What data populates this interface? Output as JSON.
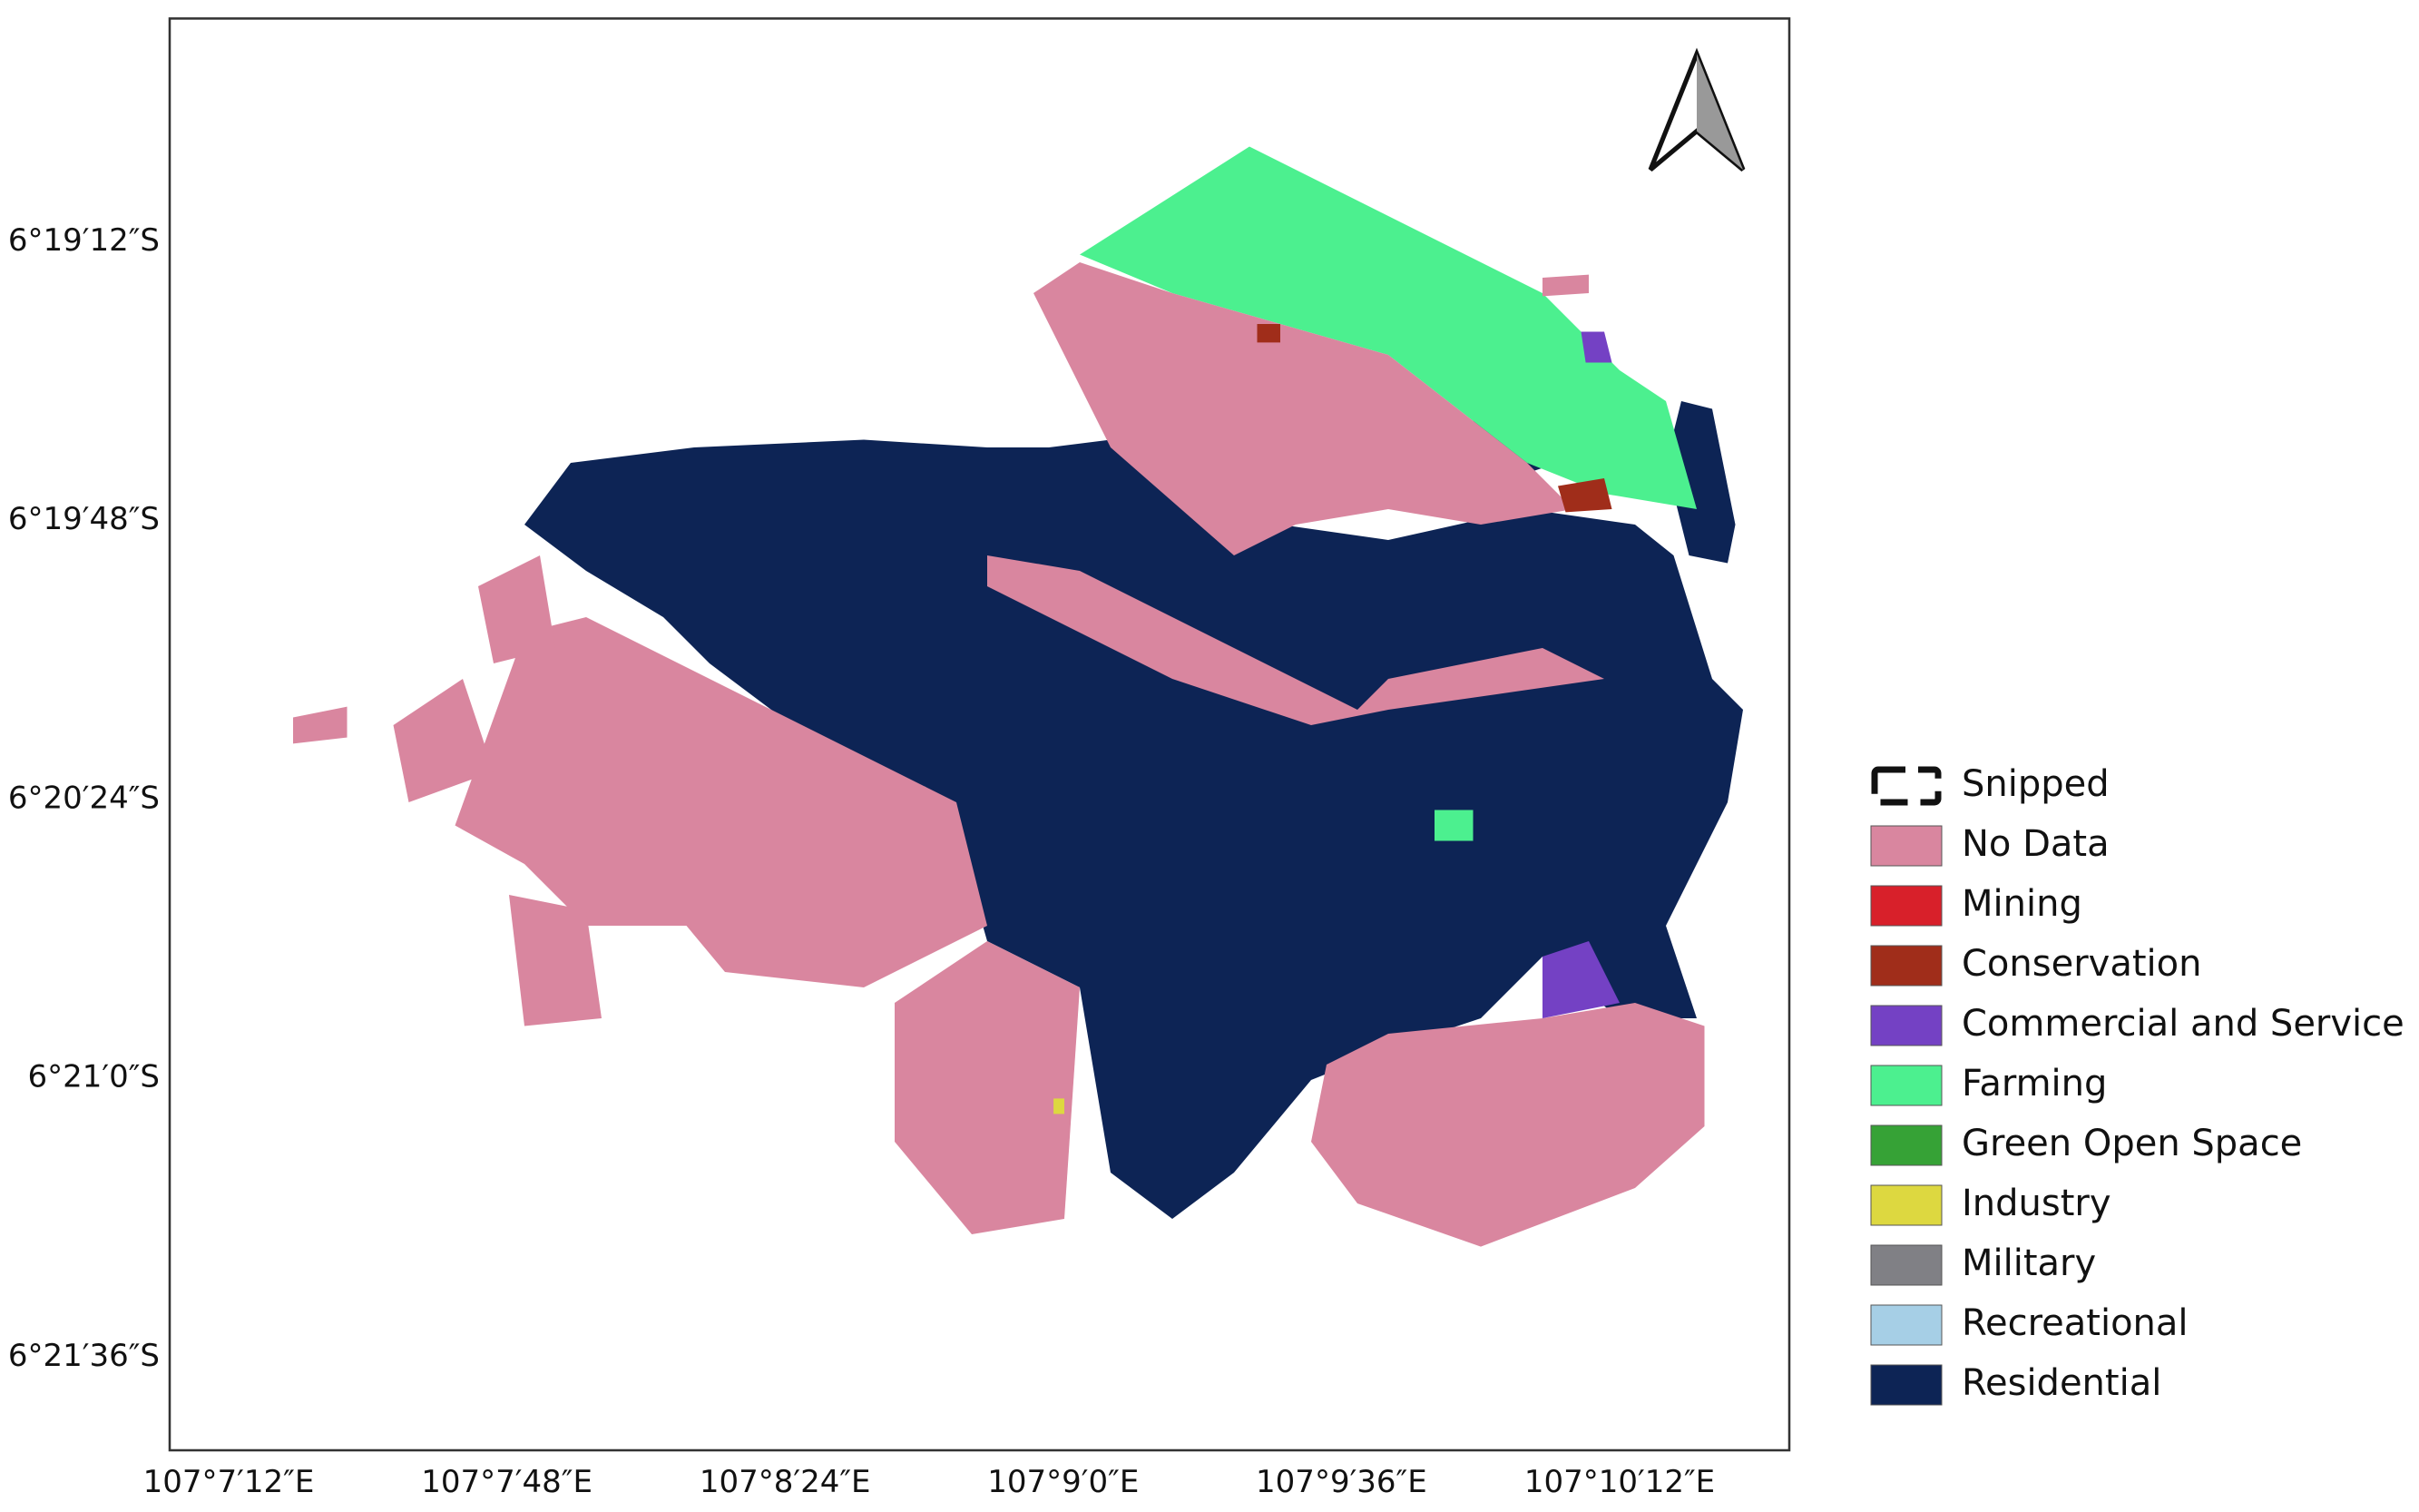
{
  "map": {
    "x_labels": [
      "107°7′12″E",
      "107°7′48″E",
      "107°8′24″E",
      "107°9′0″E",
      "107°9′36″E",
      "107°10′12″E"
    ],
    "y_labels": [
      "6°19′12″S",
      "6°19′48″S",
      "6°20′24″S",
      "6°21′0″S",
      "6°21′36″S"
    ]
  },
  "legend": [
    {
      "label": "Snipped"
    },
    {
      "label": "No Data",
      "color": "#d9869f"
    },
    {
      "label": "Mining",
      "color": "#d8202a"
    },
    {
      "label": "Conservation",
      "color": "#a02d1a"
    },
    {
      "label": "Commercial and Service",
      "color": "#7441c4"
    },
    {
      "label": "Farming",
      "color": "#4cf08f"
    },
    {
      "label": "Green Open Space",
      "color": "#36a236"
    },
    {
      "label": "Industry",
      "color": "#ddd840"
    },
    {
      "label": "Military",
      "color": "#808085"
    },
    {
      "label": "Recreational",
      "color": "#a6cfe6"
    },
    {
      "label": "Residential",
      "color": "#0d2455"
    }
  ]
}
